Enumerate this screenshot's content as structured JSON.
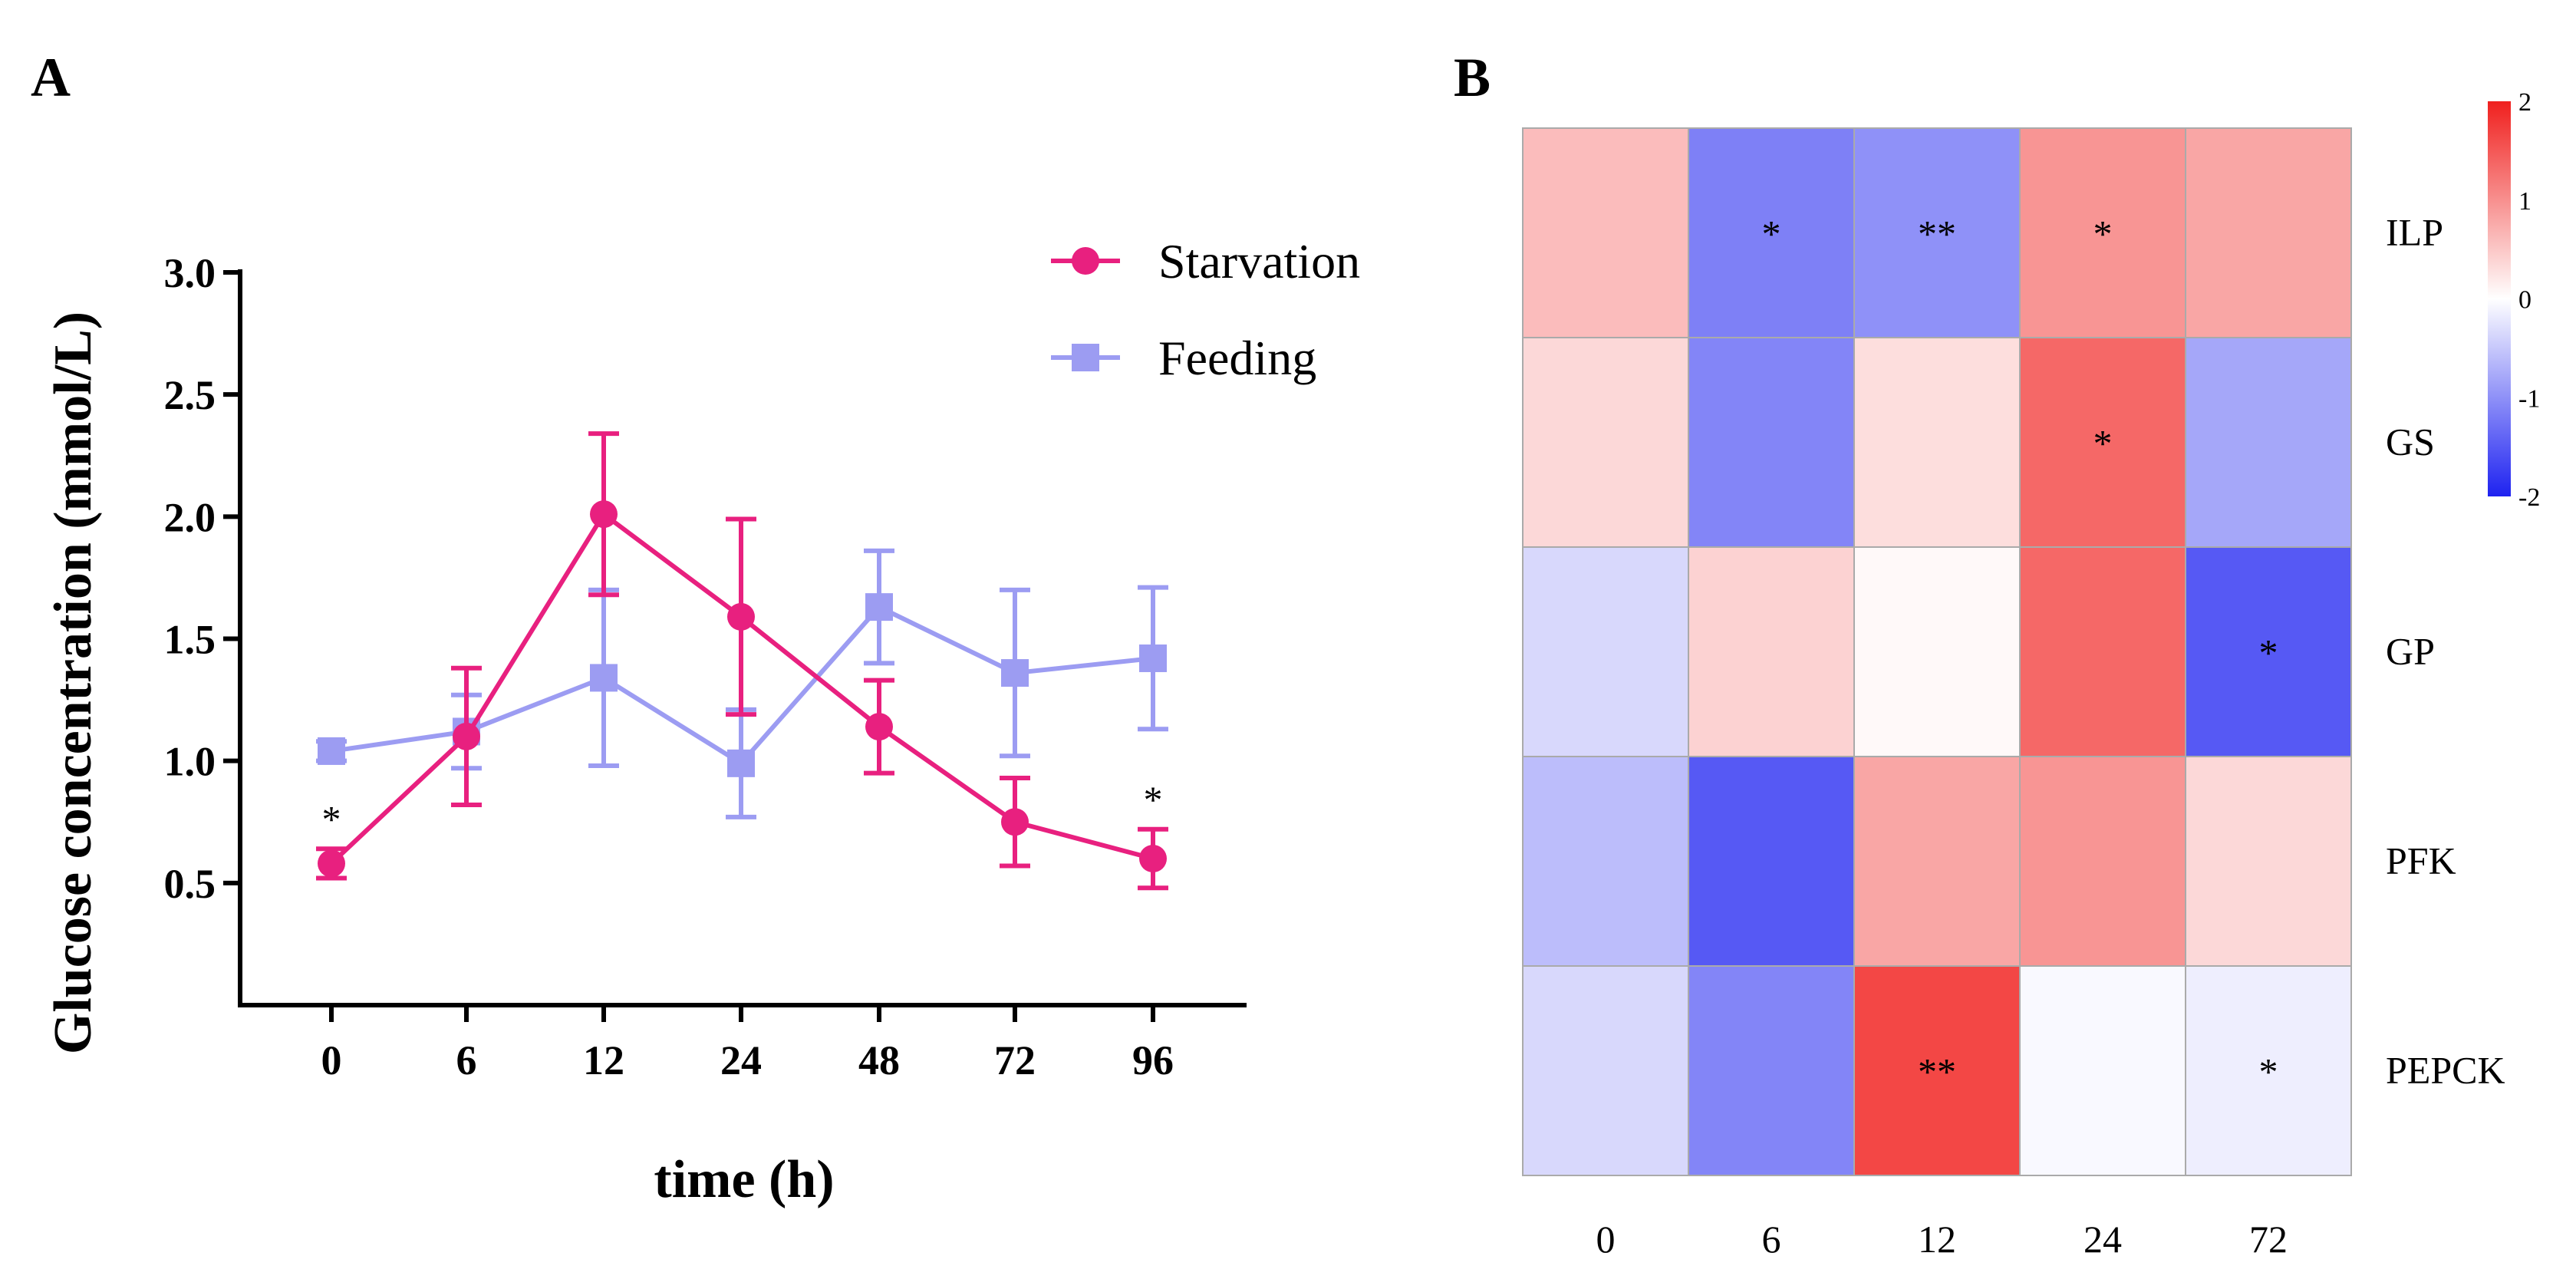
{
  "panel_a_label": "A",
  "panel_b_label": "B",
  "colors": {
    "starvation": "#e8207f",
    "feeding": "#9c9cf2",
    "heat_low": "#1e22f0",
    "heat_mid": "#ffffff",
    "heat_high": "#f0201e",
    "axis": "#000000",
    "cell_border": "#aaaaaa"
  },
  "chart_data": [
    {
      "type": "line",
      "title": "",
      "xlabel": "time (h)",
      "ylabel": "Glucose concentration (mmol/L)",
      "categories": [
        "0",
        "6",
        "12",
        "24",
        "48",
        "72",
        "96"
      ],
      "ylim": [
        0,
        3.0
      ],
      "yticks": [
        0.5,
        1.0,
        1.5,
        2.0,
        2.5,
        3.0
      ],
      "ytick_labels": [
        "0.5",
        "1.0",
        "1.5",
        "2.0",
        "2.5",
        "3.0"
      ],
      "legend_position": "top-right",
      "grid": false,
      "series": [
        {
          "name": "Starvation",
          "marker": "circle",
          "values": [
            0.58,
            1.1,
            2.01,
            1.59,
            1.14,
            0.75,
            0.6
          ],
          "error": [
            0.06,
            0.28,
            0.33,
            0.4,
            0.19,
            0.18,
            0.12
          ]
        },
        {
          "name": "Feeding",
          "marker": "square",
          "values": [
            1.04,
            1.12,
            1.34,
            0.99,
            1.63,
            1.36,
            1.42
          ],
          "error": [
            0.04,
            0.15,
            0.36,
            0.22,
            0.23,
            0.34,
            0.29
          ]
        }
      ],
      "annotations": [
        {
          "category": "0",
          "text": "*"
        },
        {
          "category": "96",
          "text": "*"
        }
      ]
    },
    {
      "type": "heatmap",
      "title": "",
      "columns": [
        "0",
        "6",
        "12",
        "24",
        "72"
      ],
      "rows": [
        "ILP",
        "GS",
        "GP",
        "PFK",
        "PEPCK"
      ],
      "values": [
        [
          0.6,
          -1.15,
          -1.0,
          0.95,
          0.8
        ],
        [
          0.35,
          -1.1,
          0.3,
          1.35,
          -0.8
        ],
        [
          -0.35,
          0.4,
          0.05,
          1.35,
          -1.5
        ],
        [
          -0.6,
          -1.5,
          0.8,
          0.95,
          0.35
        ],
        [
          -0.35,
          -1.1,
          1.65,
          -0.05,
          -0.15
        ]
      ],
      "significance": [
        [
          "",
          "*",
          "**",
          "*",
          ""
        ],
        [
          "",
          "",
          "",
          "*",
          ""
        ],
        [
          "",
          "",
          "",
          "",
          "*"
        ],
        [
          "",
          "",
          "",
          "",
          ""
        ],
        [
          "",
          "",
          "**",
          "",
          "*"
        ]
      ],
      "colorbar": {
        "range": [
          -2,
          2
        ],
        "ticks": [
          2,
          1,
          0,
          -1,
          -2
        ],
        "tick_labels": [
          "2",
          "1",
          "0",
          "-1",
          "-2"
        ]
      }
    }
  ]
}
